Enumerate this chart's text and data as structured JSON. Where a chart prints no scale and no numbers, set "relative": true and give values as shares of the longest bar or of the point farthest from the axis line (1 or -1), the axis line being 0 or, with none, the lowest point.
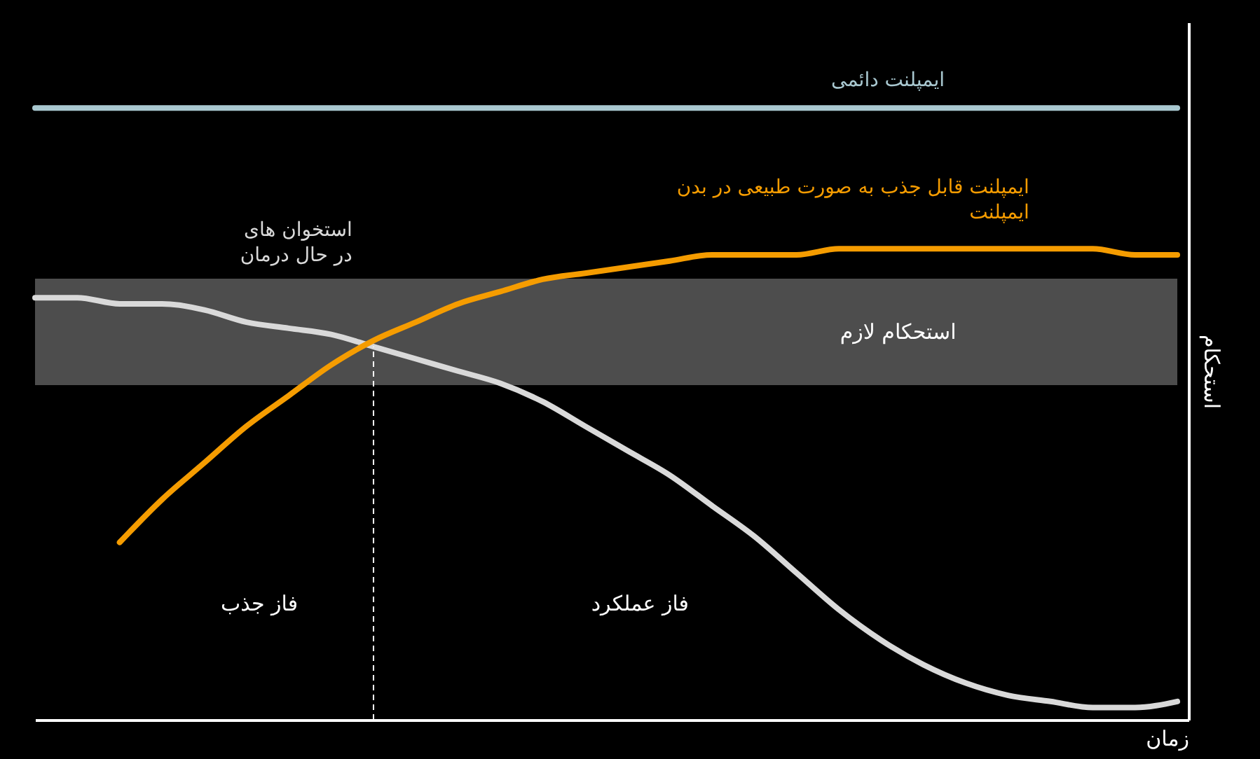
{
  "chart_data": {
    "type": "line",
    "relative": true,
    "categories": [
      null,
      null,
      null,
      null,
      null,
      null,
      null,
      null,
      null,
      null,
      null,
      null,
      null,
      null,
      null,
      null,
      null,
      null,
      null,
      null,
      null,
      null,
      null,
      null,
      null,
      null,
      null,
      null
    ],
    "xlabel": "زمان",
    "ylabel": "استحکام",
    "series": [
      {
        "name": "ایمپلنت دائمی",
        "color": "#a9c8d0",
        "values": [
          1,
          1,
          1,
          1,
          1,
          1,
          1,
          1,
          1,
          1,
          1,
          1,
          1,
          1,
          1,
          1,
          1,
          1,
          1,
          1,
          1,
          1,
          1,
          1,
          1,
          1,
          1,
          1
        ]
      },
      {
        "name": "استخوان های\nدر حال درمان",
        "color": "#d9d9d9",
        "values": [
          0.69,
          0.69,
          0.68,
          0.68,
          0.67,
          0.65,
          0.64,
          0.63,
          0.61,
          0.59,
          0.57,
          0.55,
          0.52,
          0.48,
          0.44,
          0.4,
          0.35,
          0.3,
          0.24,
          0.18,
          0.13,
          0.09,
          0.06,
          0.04,
          0.03,
          0.02,
          0.02,
          0.03
        ]
      },
      {
        "name": "ایمپلنت قابل جذب به صورت طبیعی در بدن\nایمپلنت",
        "color": "#f59c00",
        "values": [
          null,
          null,
          0.29,
          0.36,
          0.42,
          0.48,
          0.53,
          0.58,
          0.62,
          0.65,
          0.68,
          0.7,
          0.72,
          0.73,
          0.74,
          0.75,
          0.76,
          0.76,
          0.76,
          0.77,
          0.77,
          0.77,
          0.77,
          0.77,
          0.77,
          0.77,
          0.76,
          0.76
        ]
      }
    ],
    "bands": [
      {
        "axis": "y",
        "from": 0.547,
        "to": 0.721,
        "label": "استحکام لازم",
        "color": "#555555"
      }
    ],
    "annotations": [
      "فاز جذب",
      "فاز عملکرد"
    ],
    "line_style": "solid"
  }
}
